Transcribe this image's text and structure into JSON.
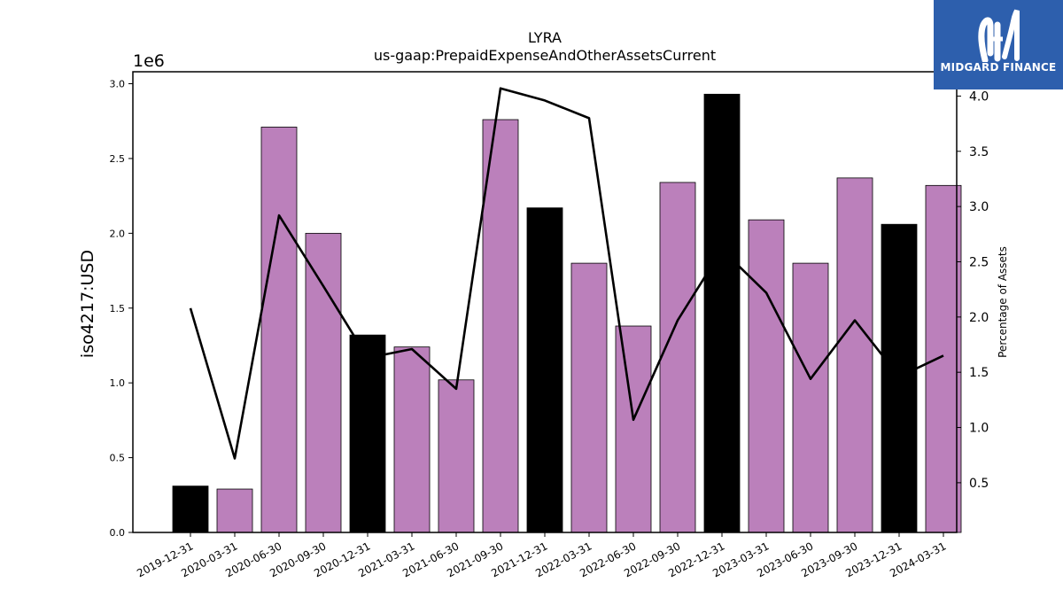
{
  "chart_data": {
    "type": "bar",
    "title": "LYRA",
    "subtitle": "us-gaap:PrepaidExpenseAndOtherAssetsCurrent",
    "ylabel": "iso4217:USD",
    "y_offset_label": "1e6",
    "y2label": "Percentage of Assets",
    "categories": [
      "2019-12-31",
      "2020-03-31",
      "2020-06-30",
      "2020-09-30",
      "2020-12-31",
      "2021-03-31",
      "2021-06-30",
      "2021-09-30",
      "2021-12-31",
      "2022-03-31",
      "2022-06-30",
      "2022-09-30",
      "2022-12-31",
      "2023-03-31",
      "2023-06-30",
      "2023-09-30",
      "2023-12-31",
      "2024-03-31"
    ],
    "values": [
      0.31,
      0.29,
      2.71,
      2.0,
      1.32,
      1.24,
      1.02,
      2.76,
      2.17,
      1.8,
      1.38,
      2.34,
      2.93,
      2.09,
      1.8,
      2.37,
      2.06,
      2.32
    ],
    "fiscal_year_end": [
      true,
      false,
      false,
      false,
      true,
      false,
      false,
      false,
      true,
      false,
      false,
      false,
      true,
      false,
      false,
      false,
      true,
      false
    ],
    "bar_colors": {
      "quarter": "#bb80bb",
      "year_end": "#000000"
    },
    "ylim": [
      0,
      3.08
    ],
    "yticks": [
      "0.0",
      "0.5",
      "1.0",
      "1.5",
      "2.0",
      "2.5",
      "3.0"
    ],
    "line_series": {
      "name": "Percentage of Assets",
      "axis": "right",
      "values": [
        2.08,
        0.72,
        2.92,
        2.28,
        1.63,
        1.71,
        1.35,
        4.07,
        3.96,
        3.8,
        1.07,
        1.97,
        2.61,
        2.22,
        1.44,
        1.97,
        1.46,
        1.65
      ],
      "color": "#000000"
    },
    "y2lim": [
      0.05,
      4.22
    ],
    "y2ticks": [
      "0.5",
      "1.0",
      "1.5",
      "2.0",
      "2.5",
      "3.0",
      "3.5",
      "4.0"
    ],
    "grid": false
  },
  "logo": {
    "text": "MIDGARD FINANCE",
    "bg_color": "#2d5fad"
  }
}
